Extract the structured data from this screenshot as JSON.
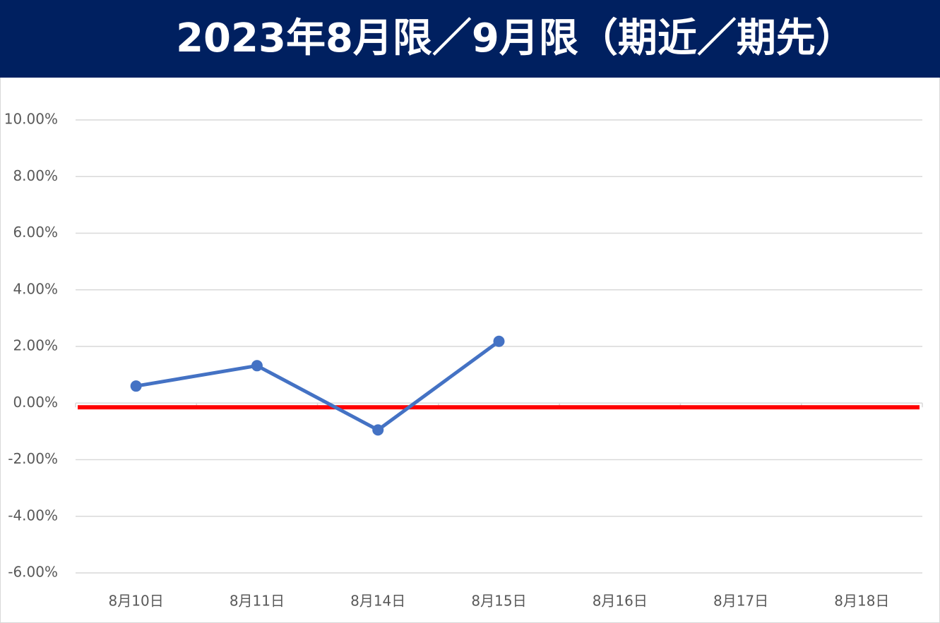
{
  "chart_data": {
    "type": "line",
    "title": "2023年8月限／9月限（期近／期先）",
    "categories": [
      "8月10日",
      "8月11日",
      "8月14日",
      "8月15日",
      "8月16日",
      "8月17日",
      "8月18日"
    ],
    "series": [
      {
        "color": "#4472c4",
        "values": [
          0.6,
          1.32,
          -0.95,
          2.18,
          null,
          null,
          null
        ]
      }
    ],
    "reference_line": {
      "value": -0.15,
      "color": "#ff0000"
    },
    "ylim": [
      -6,
      10
    ],
    "yticks": [
      {
        "value": -6,
        "label": "-6.00%"
      },
      {
        "value": -4,
        "label": "-4.00%"
      },
      {
        "value": -2,
        "label": "-2.00%"
      },
      {
        "value": 0,
        "label": "0.00%"
      },
      {
        "value": 2,
        "label": "2.00%"
      },
      {
        "value": 4,
        "label": "4.00%"
      },
      {
        "value": 6,
        "label": "6.00%"
      },
      {
        "value": 8,
        "label": "8.00%"
      },
      {
        "value": 10,
        "label": "10.00%"
      }
    ],
    "grid": true
  }
}
